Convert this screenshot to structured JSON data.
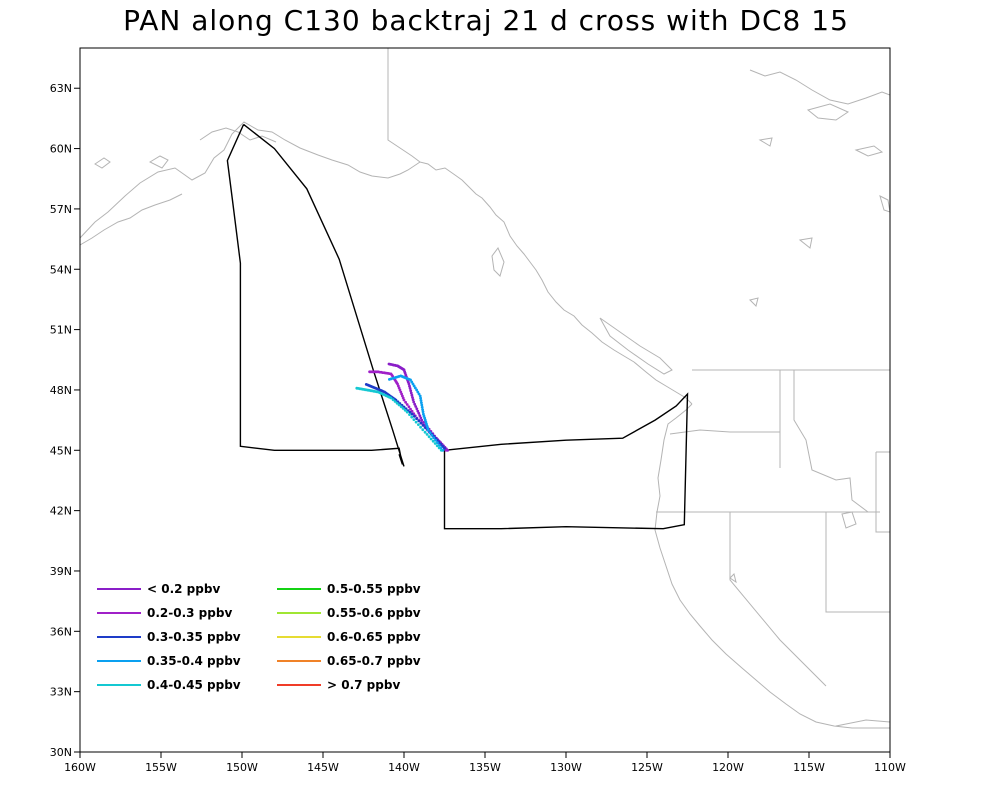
{
  "title": "PAN along C130 backtraj 21 d cross with DC8 15",
  "axes": {
    "lon_min": -160,
    "lon_max": -110,
    "lat_min": 30,
    "lat_max": 65,
    "x_tick_values": [
      -160,
      -155,
      -150,
      -145,
      -140,
      -135,
      -130,
      -125,
      -120,
      -115,
      -110
    ],
    "x_tick_labels": [
      "160W",
      "155W",
      "150W",
      "145W",
      "140W",
      "135W",
      "130W",
      "125W",
      "120W",
      "115W",
      "110W"
    ],
    "y_tick_values": [
      30,
      33,
      36,
      39,
      42,
      45,
      48,
      51,
      54,
      57,
      60,
      63
    ],
    "y_tick_labels": [
      "30N",
      "33N",
      "36N",
      "39N",
      "42N",
      "45N",
      "48N",
      "51N",
      "54N",
      "57N",
      "60N",
      "63N"
    ]
  },
  "colors": {
    "coast": "#b4b4b4",
    "flight_track": "#000000"
  },
  "legend": {
    "placement": "bottom-left",
    "items": [
      {
        "label": "< 0.2 ppbv",
        "color": "#8a1ec8"
      },
      {
        "label": "0.2-0.3 ppbv",
        "color": "#a020c8"
      },
      {
        "label": "0.3-0.35 ppbv",
        "color": "#1e3cc8"
      },
      {
        "label": "0.35-0.4 ppbv",
        "color": "#0aa0f0"
      },
      {
        "label": "0.4-0.45 ppbv",
        "color": "#14c8d2"
      },
      {
        "label": "0.5-0.55 ppbv",
        "color": "#14d214"
      },
      {
        "label": "0.55-0.6 ppbv",
        "color": "#a0e632"
      },
      {
        "label": "0.6-0.65 ppbv",
        "color": "#e6dc32"
      },
      {
        "label": "0.65-0.7 ppbv",
        "color": "#f08228"
      },
      {
        "label": "> 0.7 ppbv",
        "color": "#f03c28"
      }
    ]
  },
  "flight_track": [
    [
      -149.9,
      61.2
    ],
    [
      -150.9,
      59.4
    ],
    [
      -150.6,
      57.5
    ],
    [
      -150.1,
      54.3
    ],
    [
      -150.1,
      45.2
    ],
    [
      -148.0,
      45.0
    ],
    [
      -145.0,
      45.0
    ],
    [
      -142.0,
      45.0
    ],
    [
      -140.3,
      45.1
    ],
    [
      -140.1,
      44.3
    ],
    [
      -140.3,
      44.8
    ],
    [
      -140.0,
      44.2
    ],
    [
      -140.7,
      46.0
    ],
    [
      -141.9,
      49.0
    ],
    [
      -144.0,
      54.5
    ],
    [
      -146.0,
      58.0
    ],
    [
      -148.0,
      60.0
    ],
    [
      -149.9,
      61.2
    ]
  ],
  "flight_track_2": [
    [
      -137.5,
      45.0
    ],
    [
      -137.5,
      41.1
    ],
    [
      -134.0,
      41.1
    ],
    [
      -130.0,
      41.2
    ],
    [
      -124.0,
      41.1
    ],
    [
      -122.7,
      41.3
    ],
    [
      -122.5,
      47.8
    ],
    [
      -123.2,
      47.2
    ],
    [
      -124.5,
      46.5
    ],
    [
      -126.5,
      45.6
    ],
    [
      -130.0,
      45.5
    ],
    [
      -134.0,
      45.3
    ],
    [
      -137.5,
      45.0
    ]
  ],
  "trajectories": [
    {
      "bin": "< 0.2 ppbv",
      "color": "#8a1ec8",
      "points": [
        [
          -137.3,
          45.0
        ],
        [
          -138.0,
          45.6
        ],
        [
          -138.9,
          46.5
        ],
        [
          -139.4,
          47.4
        ],
        [
          -139.7,
          48.3
        ],
        [
          -140.0,
          49.0
        ],
        [
          -140.4,
          49.2
        ],
        [
          -141.0,
          49.3
        ]
      ]
    },
    {
      "bin": "0.2-0.3 ppbv",
      "color": "#a020c8",
      "points": [
        [
          -137.4,
          45.0
        ],
        [
          -138.2,
          45.7
        ],
        [
          -139.2,
          46.6
        ],
        [
          -140.0,
          47.5
        ],
        [
          -140.4,
          48.3
        ],
        [
          -140.8,
          48.8
        ],
        [
          -141.6,
          48.9
        ],
        [
          -142.2,
          48.9
        ]
      ]
    },
    {
      "bin": "0.3-0.35 ppbv",
      "color": "#1e3cc8",
      "points": [
        [
          -137.5,
          45.1
        ],
        [
          -138.4,
          45.9
        ],
        [
          -139.5,
          46.8
        ],
        [
          -140.5,
          47.5
        ],
        [
          -141.2,
          47.9
        ],
        [
          -141.8,
          48.1
        ],
        [
          -142.4,
          48.3
        ]
      ]
    },
    {
      "bin": "0.35-0.4 ppbv",
      "color": "#0aa0f0",
      "points": [
        [
          -137.6,
          45.0
        ],
        [
          -138.5,
          46.0
        ],
        [
          -138.8,
          46.8
        ],
        [
          -139.0,
          47.7
        ],
        [
          -139.6,
          48.5
        ],
        [
          -140.2,
          48.7
        ],
        [
          -141.0,
          48.5
        ]
      ]
    },
    {
      "bin": "0.4-0.45 ppbv",
      "color": "#14c8d2",
      "points": [
        [
          -137.7,
          45.0
        ],
        [
          -138.7,
          45.9
        ],
        [
          -139.8,
          46.9
        ],
        [
          -140.8,
          47.6
        ],
        [
          -141.6,
          47.9
        ],
        [
          -142.3,
          48.0
        ],
        [
          -143.0,
          48.1
        ]
      ]
    }
  ]
}
